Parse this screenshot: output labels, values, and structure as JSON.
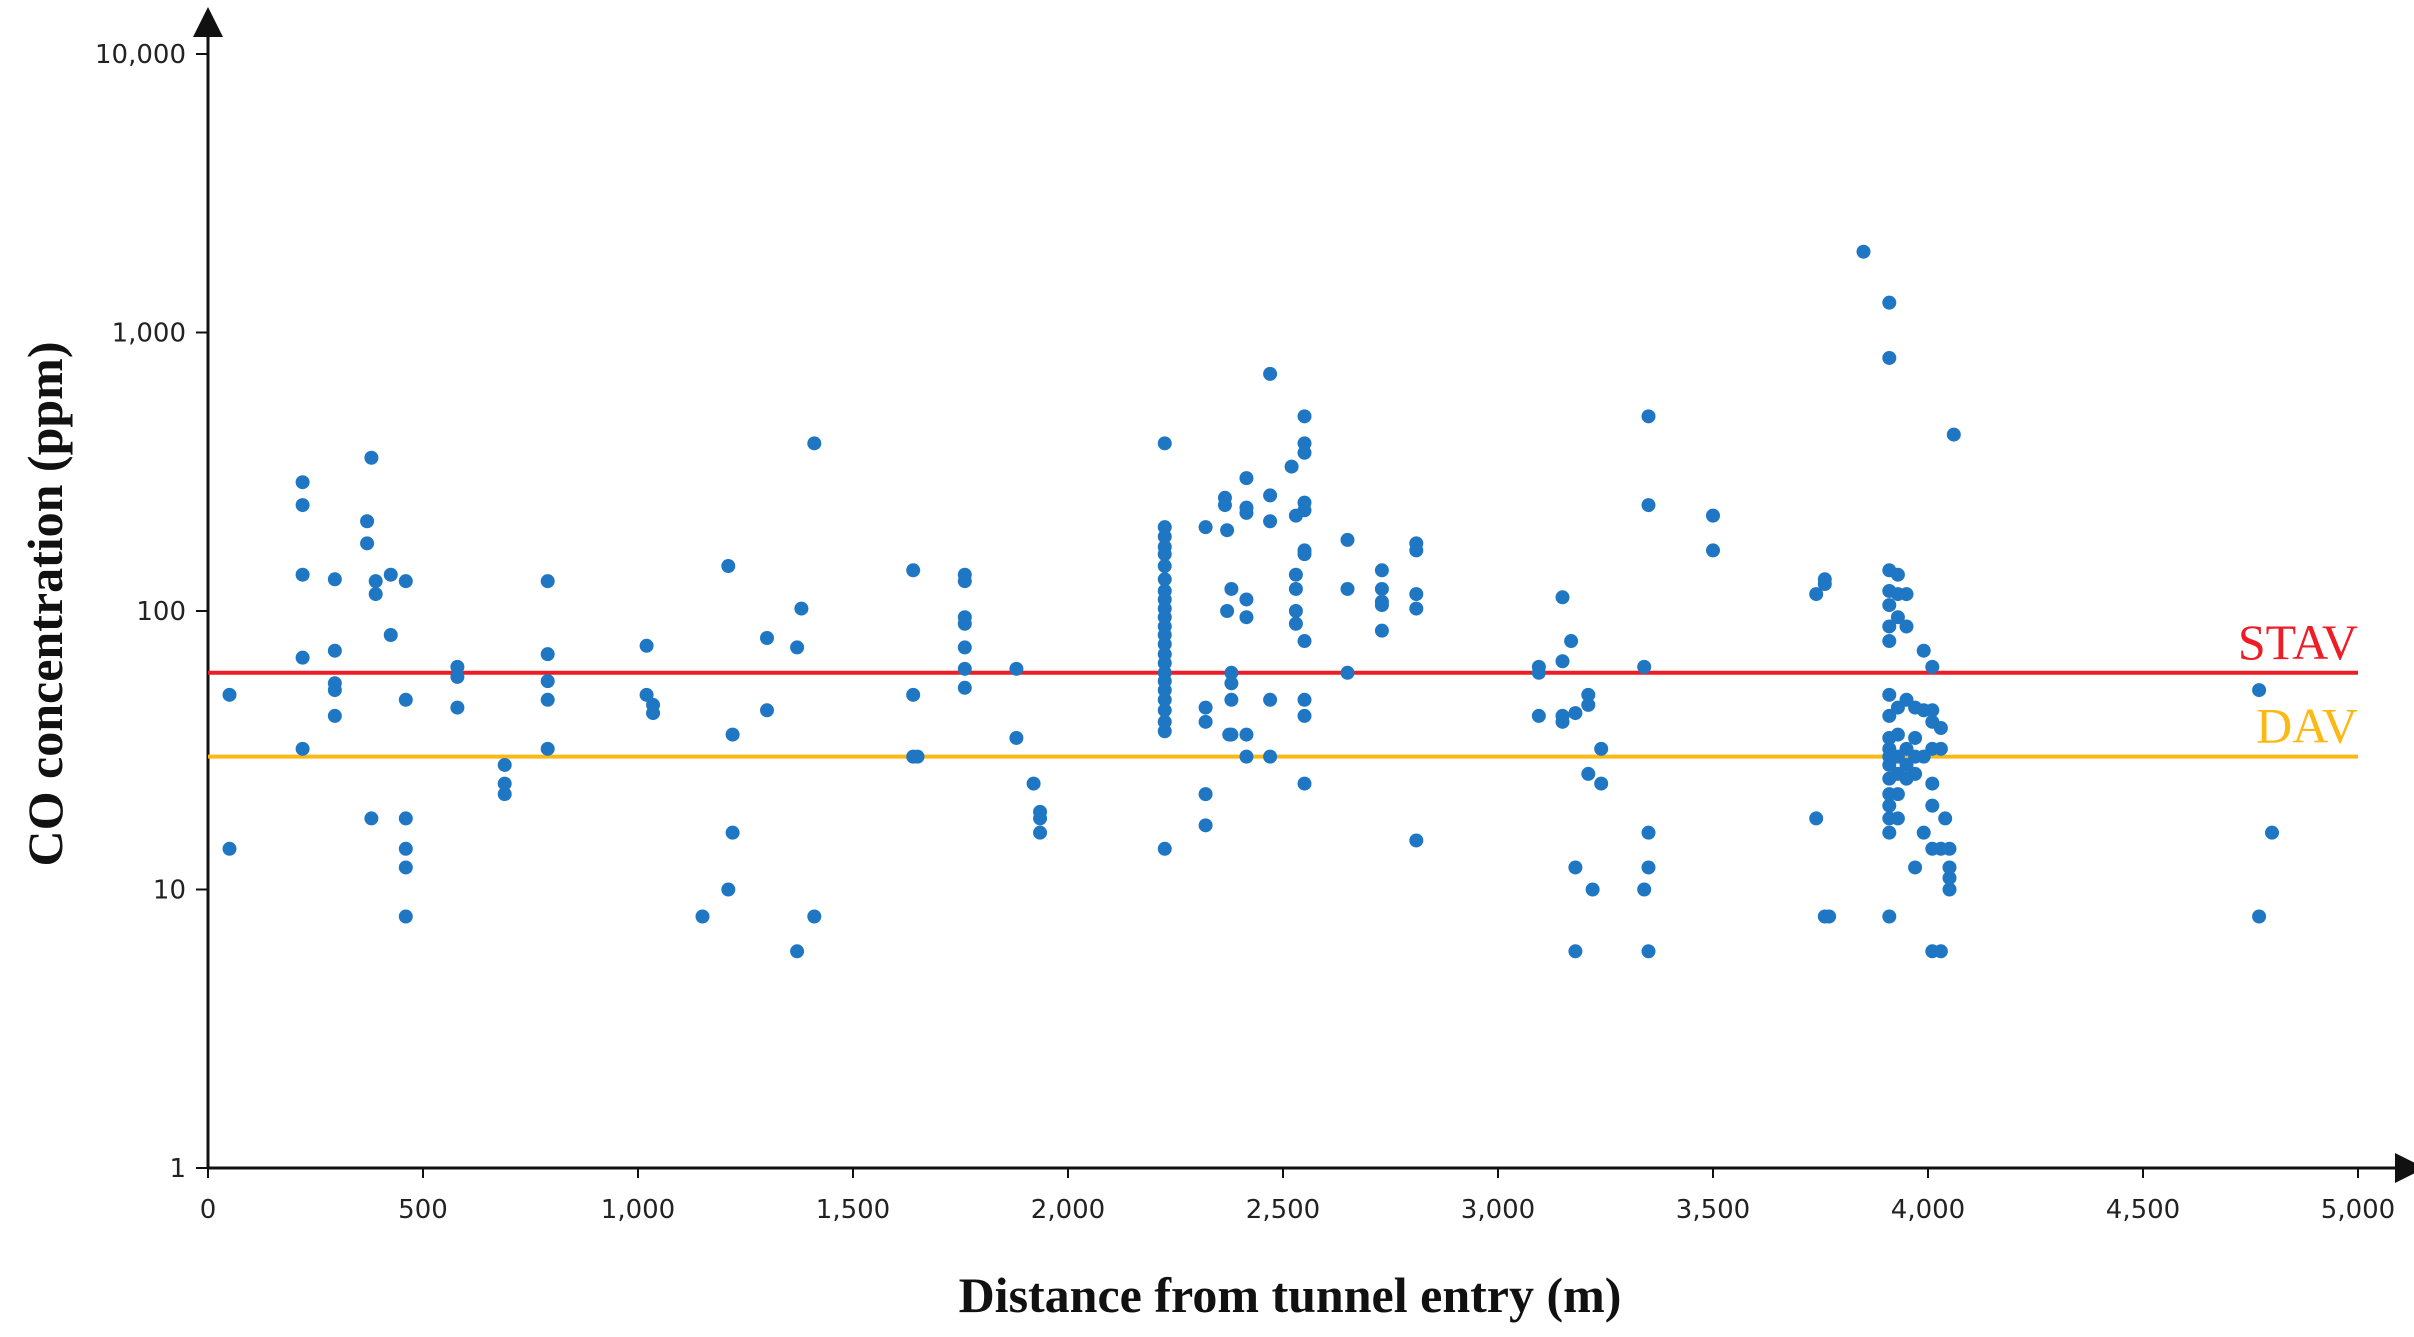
{
  "chart_data": {
    "type": "scatter",
    "title": "",
    "xlabel": "Distance from tunnel entry (m)",
    "ylabel": "CO concentration (ppm)",
    "xlim": [
      0,
      5000
    ],
    "ylim": [
      1,
      10000
    ],
    "y_scale": "log",
    "grid": false,
    "legend": "none",
    "x_ticks": [
      "0",
      "500",
      "1,000",
      "1,500",
      "2,000",
      "2,500",
      "3,000",
      "3,500",
      "4,000",
      "4,500",
      "5,000"
    ],
    "y_ticks": [
      "1",
      "10",
      "100",
      "1,000",
      "10,000"
    ],
    "marker_color": "#1f77c4",
    "reference_lines": [
      {
        "label": "STAV",
        "y": 60,
        "color": "#ee1c25"
      },
      {
        "label": "DAV",
        "y": 30,
        "color": "#fdb913"
      }
    ],
    "series": [
      {
        "points": [
          [
            50,
            50
          ],
          [
            50,
            14
          ],
          [
            220,
            290
          ],
          [
            220,
            240
          ],
          [
            220,
            135
          ],
          [
            220,
            68
          ],
          [
            220,
            32
          ],
          [
            295,
            130
          ],
          [
            295,
            72
          ],
          [
            295,
            55
          ],
          [
            295,
            52
          ],
          [
            295,
            42
          ],
          [
            370,
            210
          ],
          [
            370,
            175
          ],
          [
            380,
            355
          ],
          [
            380,
            18
          ],
          [
            390,
            128
          ],
          [
            390,
            115
          ],
          [
            425,
            135
          ],
          [
            425,
            82
          ],
          [
            460,
            128
          ],
          [
            460,
            48
          ],
          [
            460,
            18
          ],
          [
            460,
            14
          ],
          [
            460,
            12
          ],
          [
            460,
            8
          ],
          [
            580,
            63
          ],
          [
            580,
            58
          ],
          [
            580,
            45
          ],
          [
            690,
            28
          ],
          [
            690,
            24
          ],
          [
            690,
            22
          ],
          [
            790,
            128
          ],
          [
            790,
            70
          ],
          [
            790,
            56
          ],
          [
            790,
            48
          ],
          [
            790,
            32
          ],
          [
            1020,
            75
          ],
          [
            1020,
            50
          ],
          [
            1035,
            46
          ],
          [
            1035,
            43
          ],
          [
            1150,
            8
          ],
          [
            1210,
            145
          ],
          [
            1210,
            10
          ],
          [
            1220,
            36
          ],
          [
            1220,
            16
          ],
          [
            1300,
            80
          ],
          [
            1300,
            44
          ],
          [
            1370,
            74
          ],
          [
            1370,
            6
          ],
          [
            1380,
            102
          ],
          [
            1410,
            400
          ],
          [
            1410,
            8
          ],
          [
            1640,
            140
          ],
          [
            1640,
            50
          ],
          [
            1640,
            30
          ],
          [
            1650,
            30
          ],
          [
            1760,
            135
          ],
          [
            1760,
            128
          ],
          [
            1760,
            95
          ],
          [
            1760,
            90
          ],
          [
            1760,
            74
          ],
          [
            1760,
            62
          ],
          [
            1760,
            53
          ],
          [
            1880,
            62
          ],
          [
            1880,
            35
          ],
          [
            1920,
            24
          ],
          [
            1935,
            19
          ],
          [
            1935,
            18
          ],
          [
            1935,
            16
          ],
          [
            2225,
            400
          ],
          [
            2225,
            200
          ],
          [
            2225,
            185
          ],
          [
            2225,
            170
          ],
          [
            2225,
            160
          ],
          [
            2225,
            145
          ],
          [
            2225,
            130
          ],
          [
            2225,
            118
          ],
          [
            2225,
            110
          ],
          [
            2225,
            102
          ],
          [
            2225,
            95
          ],
          [
            2225,
            88
          ],
          [
            2225,
            82
          ],
          [
            2225,
            76
          ],
          [
            2225,
            70
          ],
          [
            2225,
            65
          ],
          [
            2225,
            60
          ],
          [
            2225,
            56
          ],
          [
            2225,
            52
          ],
          [
            2225,
            48
          ],
          [
            2225,
            44
          ],
          [
            2225,
            40
          ],
          [
            2225,
            37
          ],
          [
            2225,
            14
          ],
          [
            2320,
            200
          ],
          [
            2320,
            45
          ],
          [
            2320,
            40
          ],
          [
            2320,
            22
          ],
          [
            2320,
            17
          ],
          [
            2365,
            255
          ],
          [
            2365,
            240
          ],
          [
            2370,
            195
          ],
          [
            2370,
            100
          ],
          [
            2375,
            36
          ],
          [
            2380,
            120
          ],
          [
            2380,
            60
          ],
          [
            2380,
            55
          ],
          [
            2380,
            48
          ],
          [
            2380,
            36
          ],
          [
            2415,
            300
          ],
          [
            2415,
            235
          ],
          [
            2415,
            225
          ],
          [
            2415,
            110
          ],
          [
            2415,
            95
          ],
          [
            2415,
            36
          ],
          [
            2415,
            30
          ],
          [
            2470,
            710
          ],
          [
            2470,
            260
          ],
          [
            2470,
            210
          ],
          [
            2470,
            48
          ],
          [
            2470,
            30
          ],
          [
            2520,
            330
          ],
          [
            2530,
            220
          ],
          [
            2530,
            135
          ],
          [
            2530,
            120
          ],
          [
            2530,
            100
          ],
          [
            2530,
            90
          ],
          [
            2550,
            500
          ],
          [
            2550,
            400
          ],
          [
            2550,
            370
          ],
          [
            2550,
            245
          ],
          [
            2550,
            230
          ],
          [
            2550,
            165
          ],
          [
            2550,
            160
          ],
          [
            2550,
            78
          ],
          [
            2550,
            48
          ],
          [
            2550,
            42
          ],
          [
            2550,
            24
          ],
          [
            2650,
            180
          ],
          [
            2650,
            120
          ],
          [
            2650,
            60
          ],
          [
            2730,
            140
          ],
          [
            2730,
            120
          ],
          [
            2730,
            108
          ],
          [
            2730,
            105
          ],
          [
            2730,
            85
          ],
          [
            2810,
            175
          ],
          [
            2810,
            165
          ],
          [
            2810,
            115
          ],
          [
            2810,
            102
          ],
          [
            2810,
            15
          ],
          [
            3095,
            63
          ],
          [
            3095,
            60
          ],
          [
            3095,
            42
          ],
          [
            3150,
            112
          ],
          [
            3150,
            66
          ],
          [
            3150,
            42
          ],
          [
            3150,
            40
          ],
          [
            3170,
            78
          ],
          [
            3180,
            43
          ],
          [
            3180,
            12
          ],
          [
            3180,
            6
          ],
          [
            3210,
            50
          ],
          [
            3210,
            46
          ],
          [
            3210,
            26
          ],
          [
            3220,
            10
          ],
          [
            3240,
            32
          ],
          [
            3240,
            24
          ],
          [
            3340,
            63
          ],
          [
            3340,
            10
          ],
          [
            3350,
            500
          ],
          [
            3350,
            240
          ],
          [
            3350,
            16
          ],
          [
            3350,
            12
          ],
          [
            3350,
            6
          ],
          [
            3500,
            220
          ],
          [
            3500,
            165
          ],
          [
            3740,
            115
          ],
          [
            3740,
            18
          ],
          [
            3760,
            130
          ],
          [
            3760,
            125
          ],
          [
            3760,
            8
          ],
          [
            3770,
            8
          ],
          [
            3850,
            1950
          ],
          [
            3910,
            1280
          ],
          [
            3910,
            810
          ],
          [
            3910,
            140
          ],
          [
            3910,
            118
          ],
          [
            3910,
            105
          ],
          [
            3910,
            88
          ],
          [
            3910,
            78
          ],
          [
            3910,
            50
          ],
          [
            3910,
            42
          ],
          [
            3910,
            35
          ],
          [
            3910,
            32
          ],
          [
            3910,
            30
          ],
          [
            3910,
            28
          ],
          [
            3910,
            25
          ],
          [
            3910,
            22
          ],
          [
            3910,
            20
          ],
          [
            3910,
            18
          ],
          [
            3910,
            16
          ],
          [
            3910,
            8
          ],
          [
            3930,
            135
          ],
          [
            3930,
            115
          ],
          [
            3930,
            95
          ],
          [
            3930,
            45
          ],
          [
            3930,
            36
          ],
          [
            3930,
            30
          ],
          [
            3930,
            26
          ],
          [
            3930,
            22
          ],
          [
            3930,
            18
          ],
          [
            3950,
            115
          ],
          [
            3950,
            88
          ],
          [
            3950,
            48
          ],
          [
            3950,
            32
          ],
          [
            3950,
            28
          ],
          [
            3950,
            25
          ],
          [
            3970,
            45
          ],
          [
            3970,
            35
          ],
          [
            3970,
            30
          ],
          [
            3970,
            26
          ],
          [
            3970,
            12
          ],
          [
            3990,
            72
          ],
          [
            3990,
            44
          ],
          [
            3990,
            30
          ],
          [
            3990,
            16
          ],
          [
            4010,
            63
          ],
          [
            4010,
            44
          ],
          [
            4010,
            40
          ],
          [
            4010,
            32
          ],
          [
            4010,
            24
          ],
          [
            4010,
            20
          ],
          [
            4010,
            14
          ],
          [
            4010,
            6
          ],
          [
            4030,
            38
          ],
          [
            4030,
            32
          ],
          [
            4030,
            14
          ],
          [
            4030,
            6
          ],
          [
            4040,
            18
          ],
          [
            4050,
            14
          ],
          [
            4050,
            12
          ],
          [
            4050,
            11
          ],
          [
            4050,
            10
          ],
          [
            4060,
            430
          ],
          [
            4770,
            52
          ],
          [
            4770,
            8
          ],
          [
            4800,
            16
          ]
        ]
      }
    ]
  }
}
